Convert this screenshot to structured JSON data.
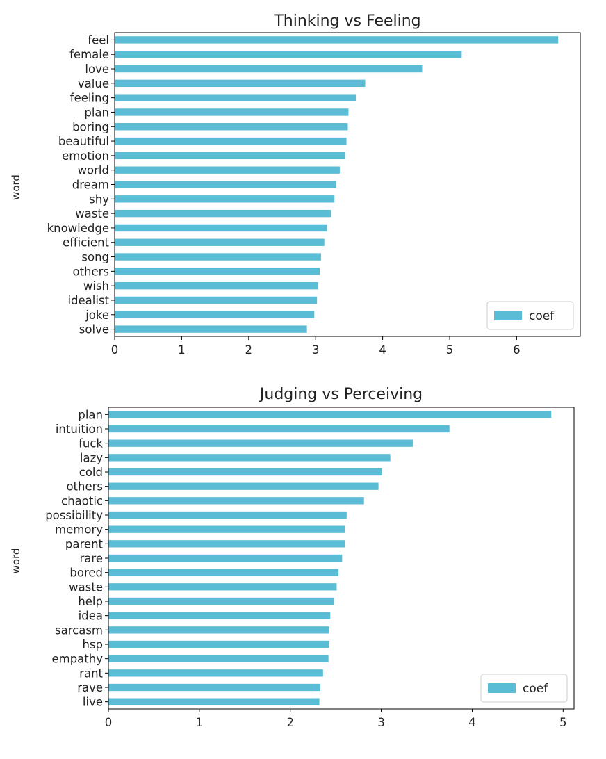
{
  "colors": {
    "bar": "#5bbcd6",
    "axis": "#000000",
    "legend_border": "#cccccc"
  },
  "chart_data": [
    {
      "type": "bar",
      "orientation": "horizontal",
      "title": "Thinking vs Feeling",
      "xlabel": "",
      "ylabel": "word",
      "xlim": [
        0,
        6.95
      ],
      "xticks": [
        0,
        1,
        2,
        3,
        4,
        5,
        6
      ],
      "grid": false,
      "legend": {
        "position": "lower right",
        "entries": [
          "coef"
        ]
      },
      "categories": [
        "feel",
        "female",
        "love",
        "value",
        "feeling",
        "plan",
        "boring",
        "beautiful",
        "emotion",
        "world",
        "dream",
        "shy",
        "waste",
        "knowledge",
        "efficient",
        "song",
        "others",
        "wish",
        "idealist",
        "joke",
        "solve"
      ],
      "series": [
        {
          "name": "coef",
          "values": [
            6.62,
            5.18,
            4.59,
            3.74,
            3.6,
            3.49,
            3.48,
            3.46,
            3.44,
            3.36,
            3.31,
            3.28,
            3.23,
            3.17,
            3.13,
            3.08,
            3.06,
            3.04,
            3.02,
            2.98,
            2.87
          ]
        }
      ]
    },
    {
      "type": "bar",
      "orientation": "horizontal",
      "title": "Judging vs Perceiving",
      "xlabel": "",
      "ylabel": "word",
      "xlim": [
        0,
        5.12
      ],
      "xticks": [
        0,
        1,
        2,
        3,
        4,
        5
      ],
      "grid": false,
      "legend": {
        "position": "lower right",
        "entries": [
          "coef"
        ]
      },
      "categories": [
        "plan",
        "intuition",
        "fuck",
        "lazy",
        "cold",
        "others",
        "chaotic",
        "possibility",
        "memory",
        "parent",
        "rare",
        "bored",
        "waste",
        "help",
        "idea",
        "sarcasm",
        "hsp",
        "empathy",
        "rant",
        "rave",
        "live"
      ],
      "series": [
        {
          "name": "coef",
          "values": [
            4.87,
            3.75,
            3.35,
            3.1,
            3.01,
            2.97,
            2.81,
            2.62,
            2.6,
            2.6,
            2.57,
            2.53,
            2.51,
            2.48,
            2.44,
            2.43,
            2.43,
            2.42,
            2.36,
            2.33,
            2.32
          ]
        }
      ]
    }
  ]
}
